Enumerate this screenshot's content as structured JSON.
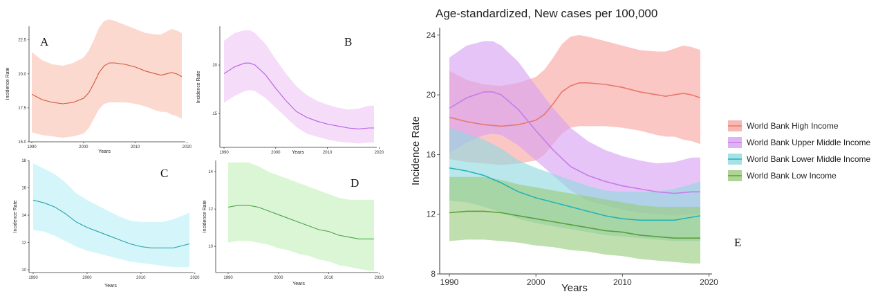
{
  "chart_data": [
    {
      "panel": "A",
      "type": "line",
      "xlabel": "Years",
      "ylabel": "Incidence Rate",
      "xlim": [
        1990,
        2019
      ],
      "ylim": [
        15.0,
        23.5
      ],
      "x_ticks": [
        "1990",
        "2000",
        "2010",
        "2020"
      ],
      "y_ticks": [
        "15.0",
        "17.5",
        "20.0",
        "22.5"
      ],
      "series": [
        {
          "color": "#d0553c",
          "band_color": "#fcd2c6",
          "x": [
            1990,
            1992,
            1994,
            1996,
            1998,
            2000,
            2001,
            2002,
            2003,
            2004,
            2005,
            2006,
            2008,
            2010,
            2012,
            2014,
            2015,
            2016,
            2017,
            2018,
            2019
          ],
          "values": [
            18.5,
            18.1,
            17.9,
            17.8,
            17.9,
            18.2,
            18.6,
            19.3,
            20.1,
            20.6,
            20.8,
            20.8,
            20.7,
            20.5,
            20.2,
            20.0,
            19.9,
            20.0,
            20.1,
            20.0,
            19.8
          ],
          "lower": [
            15.7,
            15.5,
            15.4,
            15.3,
            15.4,
            15.6,
            16.0,
            16.7,
            17.4,
            17.8,
            17.9,
            17.9,
            17.9,
            17.8,
            17.6,
            17.3,
            17.2,
            17.2,
            17.0,
            16.9,
            16.7
          ],
          "upper": [
            21.6,
            21.0,
            20.7,
            20.6,
            20.8,
            21.2,
            21.7,
            22.5,
            23.4,
            23.9,
            24.0,
            23.9,
            23.6,
            23.3,
            23.0,
            22.9,
            22.9,
            23.1,
            23.3,
            23.2,
            23.0
          ]
        }
      ]
    },
    {
      "panel": "B",
      "type": "line",
      "xlabel": "Years",
      "ylabel": "Incidence Rate",
      "xlim": [
        1990,
        2019
      ],
      "ylim": [
        11.5,
        24.0
      ],
      "x_ticks": [
        "1990",
        "2000",
        "2010",
        "2020"
      ],
      "y_ticks": [
        "15",
        "20"
      ],
      "series": [
        {
          "color": "#b55ee0",
          "band_color": "#f3d6f8",
          "x": [
            1990,
            1992,
            1994,
            1995,
            1996,
            1998,
            2000,
            2002,
            2004,
            2006,
            2008,
            2010,
            2012,
            2014,
            2016,
            2018,
            2019
          ],
          "values": [
            19.1,
            19.8,
            20.2,
            20.2,
            20.0,
            19.0,
            17.6,
            16.3,
            15.2,
            14.6,
            14.2,
            13.9,
            13.7,
            13.5,
            13.4,
            13.5,
            13.5
          ],
          "lower": [
            16.1,
            16.8,
            17.3,
            17.4,
            17.3,
            16.6,
            15.6,
            14.6,
            13.6,
            12.9,
            12.6,
            12.3,
            12.1,
            12.0,
            11.9,
            12.0,
            12.0
          ],
          "upper": [
            22.5,
            23.3,
            23.6,
            23.6,
            23.3,
            22.2,
            20.6,
            19.1,
            17.8,
            16.9,
            16.3,
            15.9,
            15.6,
            15.4,
            15.5,
            15.8,
            15.8
          ]
        }
      ]
    },
    {
      "panel": "C",
      "type": "line",
      "xlabel": "Years",
      "ylabel": "Incidence Rate",
      "xlim": [
        1990,
        2019
      ],
      "ylim": [
        9.8,
        18.0
      ],
      "x_ticks": [
        "1990",
        "2000",
        "2010",
        "2020"
      ],
      "y_ticks": [
        "10",
        "12",
        "14",
        "16",
        "18"
      ],
      "series": [
        {
          "color": "#2aa3a8",
          "band_color": "#cdf5f9",
          "x": [
            1990,
            1992,
            1994,
            1996,
            1998,
            2000,
            2002,
            2004,
            2006,
            2008,
            2010,
            2012,
            2014,
            2016,
            2018,
            2019
          ],
          "values": [
            15.1,
            14.9,
            14.6,
            14.1,
            13.5,
            13.1,
            12.8,
            12.5,
            12.2,
            11.9,
            11.7,
            11.6,
            11.6,
            11.6,
            11.8,
            11.9
          ],
          "lower": [
            12.9,
            12.8,
            12.5,
            12.1,
            11.7,
            11.4,
            11.2,
            11.0,
            10.8,
            10.6,
            10.5,
            10.4,
            10.3,
            10.2,
            10.2,
            10.2
          ],
          "upper": [
            17.8,
            17.4,
            17.0,
            16.4,
            15.6,
            15.1,
            14.7,
            14.3,
            13.9,
            13.6,
            13.5,
            13.5,
            13.5,
            13.7,
            14.0,
            14.2
          ]
        }
      ]
    },
    {
      "panel": "D",
      "type": "line",
      "xlabel": "Years",
      "ylabel": "Incidence Rate",
      "xlim": [
        1990,
        2019
      ],
      "ylim": [
        8.6,
        14.6
      ],
      "x_ticks": [
        "1990",
        "2000",
        "2010",
        "2020"
      ],
      "y_ticks": [
        "10",
        "12",
        "14"
      ],
      "series": [
        {
          "color": "#4aa34a",
          "band_color": "#d5f4cc",
          "x": [
            1990,
            1992,
            1994,
            1996,
            1998,
            2000,
            2002,
            2004,
            2006,
            2008,
            2010,
            2012,
            2014,
            2016,
            2018,
            2019
          ],
          "values": [
            12.1,
            12.2,
            12.2,
            12.1,
            11.9,
            11.7,
            11.5,
            11.3,
            11.1,
            10.9,
            10.8,
            10.6,
            10.5,
            10.4,
            10.4,
            10.4
          ],
          "lower": [
            10.2,
            10.3,
            10.3,
            10.2,
            10.1,
            9.9,
            9.8,
            9.6,
            9.5,
            9.3,
            9.2,
            9.0,
            8.9,
            8.8,
            8.7,
            8.7
          ],
          "upper": [
            14.5,
            14.5,
            14.5,
            14.3,
            14.0,
            13.8,
            13.6,
            13.4,
            13.2,
            13.0,
            12.8,
            12.6,
            12.5,
            12.5,
            12.5,
            12.5
          ]
        }
      ]
    },
    {
      "panel": "E",
      "type": "line",
      "title": "Age-standardized, New cases per 100,000",
      "xlabel": "Years",
      "ylabel": "Incidence Rate",
      "xlim": [
        1990,
        2019
      ],
      "ylim": [
        8,
        24.5
      ],
      "x_ticks": [
        "1990",
        "2000",
        "2010",
        "2020"
      ],
      "y_ticks": [
        "8",
        "12",
        "16",
        "20",
        "24"
      ],
      "legend_position": "right",
      "series": [
        {
          "name": "World Bank High Income",
          "color": "#e8766d",
          "band_color": "#f8a5a0",
          "x": [
            1990,
            1992,
            1994,
            1996,
            1998,
            2000,
            2001,
            2002,
            2003,
            2004,
            2005,
            2006,
            2008,
            2010,
            2012,
            2014,
            2015,
            2016,
            2017,
            2018,
            2019
          ],
          "values": [
            18.5,
            18.2,
            18.0,
            17.9,
            18.0,
            18.3,
            18.7,
            19.4,
            20.2,
            20.6,
            20.8,
            20.8,
            20.7,
            20.5,
            20.2,
            20.0,
            19.9,
            20.0,
            20.1,
            20.0,
            19.8
          ],
          "lower": [
            15.7,
            15.5,
            15.4,
            15.3,
            15.4,
            15.6,
            16.0,
            16.7,
            17.4,
            17.8,
            17.9,
            17.9,
            17.9,
            17.8,
            17.6,
            17.3,
            17.2,
            17.2,
            17.0,
            16.9,
            16.7
          ],
          "upper": [
            21.6,
            21.0,
            20.7,
            20.6,
            20.8,
            21.2,
            21.7,
            22.5,
            23.4,
            23.9,
            24.0,
            23.9,
            23.6,
            23.3,
            23.0,
            22.9,
            22.9,
            23.1,
            23.3,
            23.2,
            23.0
          ]
        },
        {
          "name": "World Bank Upper Middle Income",
          "color": "#c77ce8",
          "band_color": "#d6a0f2",
          "x": [
            1990,
            1992,
            1994,
            1995,
            1996,
            1998,
            2000,
            2002,
            2004,
            2006,
            2008,
            2010,
            2012,
            2014,
            2016,
            2018,
            2019
          ],
          "values": [
            19.1,
            19.8,
            20.2,
            20.2,
            20.0,
            19.0,
            17.6,
            16.3,
            15.2,
            14.6,
            14.2,
            13.9,
            13.7,
            13.5,
            13.4,
            13.5,
            13.5
          ],
          "lower": [
            16.1,
            16.8,
            17.3,
            17.4,
            17.3,
            16.6,
            15.6,
            14.6,
            13.6,
            12.9,
            12.6,
            12.3,
            12.1,
            12.0,
            11.9,
            12.0,
            12.0
          ],
          "upper": [
            22.5,
            23.3,
            23.6,
            23.6,
            23.3,
            22.2,
            20.6,
            19.1,
            17.8,
            16.9,
            16.3,
            15.9,
            15.6,
            15.4,
            15.5,
            15.8,
            15.8
          ]
        },
        {
          "name": "World Bank Lower Middle Income",
          "color": "#22b3b8",
          "band_color": "#8fd9de",
          "x": [
            1990,
            1992,
            1994,
            1996,
            1998,
            2000,
            2002,
            2004,
            2006,
            2008,
            2010,
            2012,
            2014,
            2016,
            2018,
            2019
          ],
          "values": [
            15.1,
            14.9,
            14.6,
            14.1,
            13.5,
            13.1,
            12.8,
            12.5,
            12.2,
            11.9,
            11.7,
            11.6,
            11.6,
            11.6,
            11.8,
            11.9
          ],
          "lower": [
            12.9,
            12.8,
            12.5,
            12.1,
            11.7,
            11.4,
            11.2,
            11.0,
            10.8,
            10.6,
            10.5,
            10.4,
            10.3,
            10.2,
            10.2,
            10.2
          ],
          "upper": [
            17.8,
            17.4,
            17.0,
            16.4,
            15.6,
            15.1,
            14.7,
            14.3,
            13.9,
            13.6,
            13.5,
            13.5,
            13.5,
            13.7,
            14.0,
            14.2
          ]
        },
        {
          "name": "World Bank Low Income",
          "color": "#5a9e3a",
          "band_color": "#9acb7c",
          "x": [
            1990,
            1992,
            1994,
            1996,
            1998,
            2000,
            2002,
            2004,
            2006,
            2008,
            2010,
            2012,
            2014,
            2016,
            2018,
            2019
          ],
          "values": [
            12.1,
            12.2,
            12.2,
            12.1,
            11.9,
            11.7,
            11.5,
            11.3,
            11.1,
            10.9,
            10.8,
            10.6,
            10.5,
            10.4,
            10.4,
            10.4
          ],
          "lower": [
            10.2,
            10.3,
            10.3,
            10.2,
            10.1,
            9.9,
            9.8,
            9.6,
            9.5,
            9.3,
            9.2,
            9.0,
            8.9,
            8.8,
            8.7,
            8.7
          ],
          "upper": [
            14.5,
            14.5,
            14.5,
            14.3,
            14.0,
            13.8,
            13.6,
            13.4,
            13.2,
            13.0,
            12.8,
            12.6,
            12.5,
            12.5,
            12.5,
            12.5
          ]
        }
      ]
    }
  ]
}
